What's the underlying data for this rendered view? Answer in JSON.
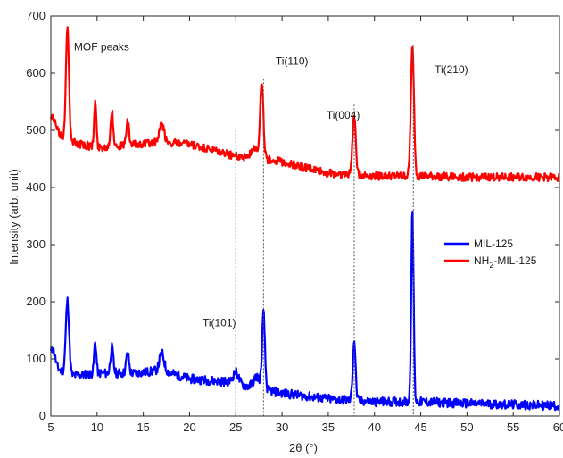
{
  "chart_data": {
    "type": "line",
    "xlabel": "2θ (°)",
    "ylabel": "Intensity (arb. unit)",
    "xlim": [
      5,
      60
    ],
    "ylim": [
      0,
      700
    ],
    "xticks": [
      5,
      10,
      15,
      20,
      25,
      30,
      35,
      40,
      45,
      50,
      55,
      60
    ],
    "yticks": [
      0,
      100,
      200,
      300,
      400,
      500,
      600,
      700
    ],
    "xtick_labels": [
      "5",
      "10",
      "15",
      "20",
      "25",
      "30",
      "35",
      "40",
      "45",
      "50",
      "55",
      "60"
    ],
    "ytick_labels": [
      "0",
      "100",
      "200",
      "300",
      "400",
      "500",
      "600",
      "700"
    ],
    "grid": false,
    "legend_position": "right",
    "series": [
      {
        "name": "MIL-125",
        "color": "#0000ff",
        "baseline": [
          [
            5,
            90
          ],
          [
            7,
            70
          ],
          [
            10,
            75
          ],
          [
            14,
            75
          ],
          [
            17,
            80
          ],
          [
            20,
            65
          ],
          [
            24,
            60
          ],
          [
            27,
            50
          ],
          [
            30,
            40
          ],
          [
            35,
            30
          ],
          [
            40,
            25
          ],
          [
            45,
            25
          ],
          [
            50,
            22
          ],
          [
            55,
            20
          ],
          [
            60,
            18
          ]
        ],
        "peaks": [
          [
            5.2,
            30,
            0.25
          ],
          [
            6.8,
            130,
            0.18
          ],
          [
            9.8,
            55,
            0.12
          ],
          [
            11.6,
            45,
            0.15
          ],
          [
            13.3,
            35,
            0.15
          ],
          [
            17.0,
            30,
            0.25
          ],
          [
            25.0,
            20,
            0.3
          ],
          [
            27.3,
            20,
            0.35
          ],
          [
            28.0,
            130,
            0.15
          ],
          [
            37.8,
            105,
            0.15
          ],
          [
            44.1,
            330,
            0.13
          ]
        ],
        "noise": 8
      },
      {
        "name": "NH2-MIL-125",
        "color": "#ff0000",
        "baseline": [
          [
            5,
            505
          ],
          [
            7,
            480
          ],
          [
            10,
            470
          ],
          [
            14,
            475
          ],
          [
            17,
            480
          ],
          [
            20,
            475
          ],
          [
            25,
            455
          ],
          [
            28,
            450
          ],
          [
            30,
            445
          ],
          [
            35,
            425
          ],
          [
            40,
            420
          ],
          [
            45,
            420
          ],
          [
            50,
            418
          ],
          [
            55,
            418
          ],
          [
            60,
            418
          ]
        ],
        "peaks": [
          [
            5.2,
            20,
            0.3
          ],
          [
            6.8,
            205,
            0.16
          ],
          [
            9.8,
            80,
            0.12
          ],
          [
            11.6,
            60,
            0.15
          ],
          [
            13.3,
            40,
            0.15
          ],
          [
            17.0,
            30,
            0.25
          ],
          [
            27.0,
            20,
            0.3
          ],
          [
            27.8,
            130,
            0.18
          ],
          [
            37.8,
            105,
            0.18
          ],
          [
            44.1,
            225,
            0.17
          ]
        ],
        "noise": 7
      }
    ],
    "legend": [
      {
        "key": "mil125",
        "color": "#0000ff",
        "label": "MIL-125",
        "label_main": "MIL-125",
        "label_sub": "",
        "label_tail": ""
      },
      {
        "key": "nh2mil125",
        "color": "#ff0000",
        "label": "NH2-MIL-125",
        "label_main": "NH",
        "label_sub": "2",
        "label_tail": "-MIL-125"
      }
    ],
    "reference_lines": [
      {
        "x": 25.0,
        "y_top": 500
      },
      {
        "x": 28.0,
        "y_top": 590
      },
      {
        "x": 37.8,
        "y_top": 545
      },
      {
        "x": 44.2,
        "y_top": 650
      }
    ],
    "annotations": [
      {
        "text": "MOF peaks",
        "x": 7.5,
        "y": 640
      },
      {
        "text": "Ti(110)",
        "x": 29.3,
        "y": 615
      },
      {
        "text": "Ti(004)",
        "x": 34.8,
        "y": 520
      },
      {
        "text": "Ti(210)",
        "x": 46.5,
        "y": 600
      },
      {
        "text": "Ti(101)",
        "x": 21.4,
        "y": 157
      }
    ]
  }
}
